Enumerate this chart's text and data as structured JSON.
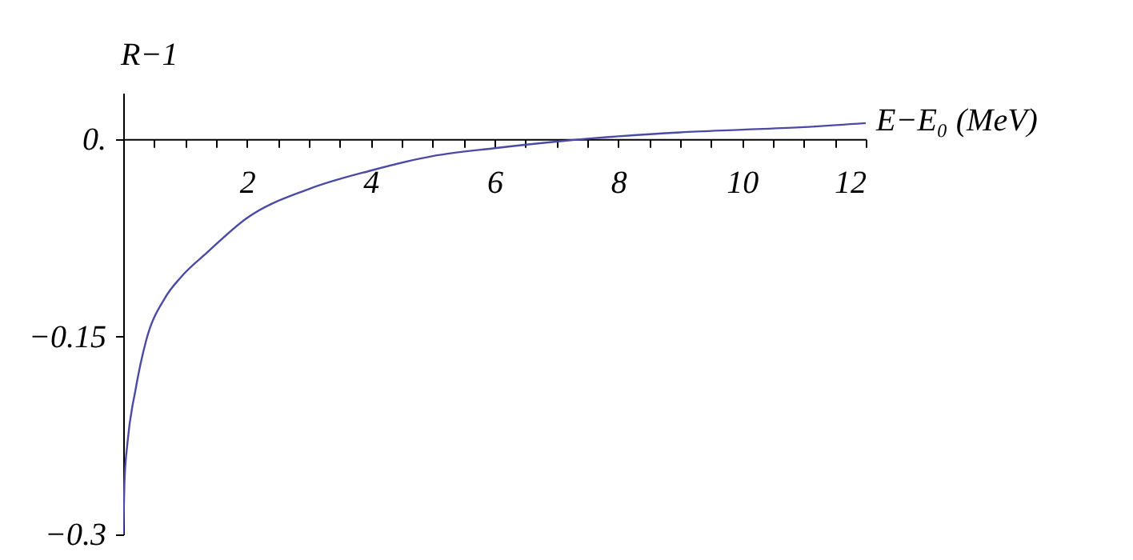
{
  "chart_data": {
    "type": "line",
    "xlabel": "E−E₀ (MeV)",
    "ylabel": "R−1",
    "xlim": [
      0,
      12
    ],
    "ylim": [
      -0.3,
      0.035
    ],
    "xticks": [
      {
        "value": 0.5,
        "label": null
      },
      {
        "value": 1,
        "label": null
      },
      {
        "value": 1.5,
        "label": null
      },
      2,
      {
        "value": 2.5,
        "label": null
      },
      {
        "value": 3,
        "label": null
      },
      {
        "value": 3.5,
        "label": null
      },
      4,
      {
        "value": 4.5,
        "label": null
      },
      {
        "value": 5,
        "label": null
      },
      {
        "value": 5.5,
        "label": null
      },
      6,
      {
        "value": 6.5,
        "label": null
      },
      {
        "value": 7,
        "label": null
      },
      {
        "value": 7.5,
        "label": null
      },
      8,
      {
        "value": 8.5,
        "label": null
      },
      {
        "value": 9,
        "label": null
      },
      {
        "value": 9.5,
        "label": null
      },
      10,
      {
        "value": 10.5,
        "label": null
      },
      {
        "value": 11,
        "label": null
      },
      {
        "value": 11.5,
        "label": null
      },
      12
    ],
    "yticks": [
      {
        "value": -0.3,
        "label": "−0.3"
      },
      {
        "value": -0.15,
        "label": "−0.15"
      },
      {
        "value": 0,
        "label": "0."
      }
    ],
    "grid": false,
    "marker": "none",
    "line_style": "solid",
    "x": [
      0,
      0.02,
      0.07,
      0.2,
      0.37,
      0.67,
      0.93,
      1.36,
      2,
      3,
      4,
      5,
      6,
      7,
      7.46,
      8,
      9,
      10,
      11,
      12
    ],
    "series": [
      {
        "color": "#4b4ba6",
        "values": [
          -0.3,
          -0.26,
          -0.23,
          -0.19,
          -0.153,
          -0.121,
          -0.105,
          -0.086,
          -0.06,
          -0.038,
          -0.024,
          -0.013,
          -0.007,
          -0.002,
          0,
          0.002,
          0.005,
          0.007,
          0.009,
          0.012
        ]
      }
    ]
  }
}
